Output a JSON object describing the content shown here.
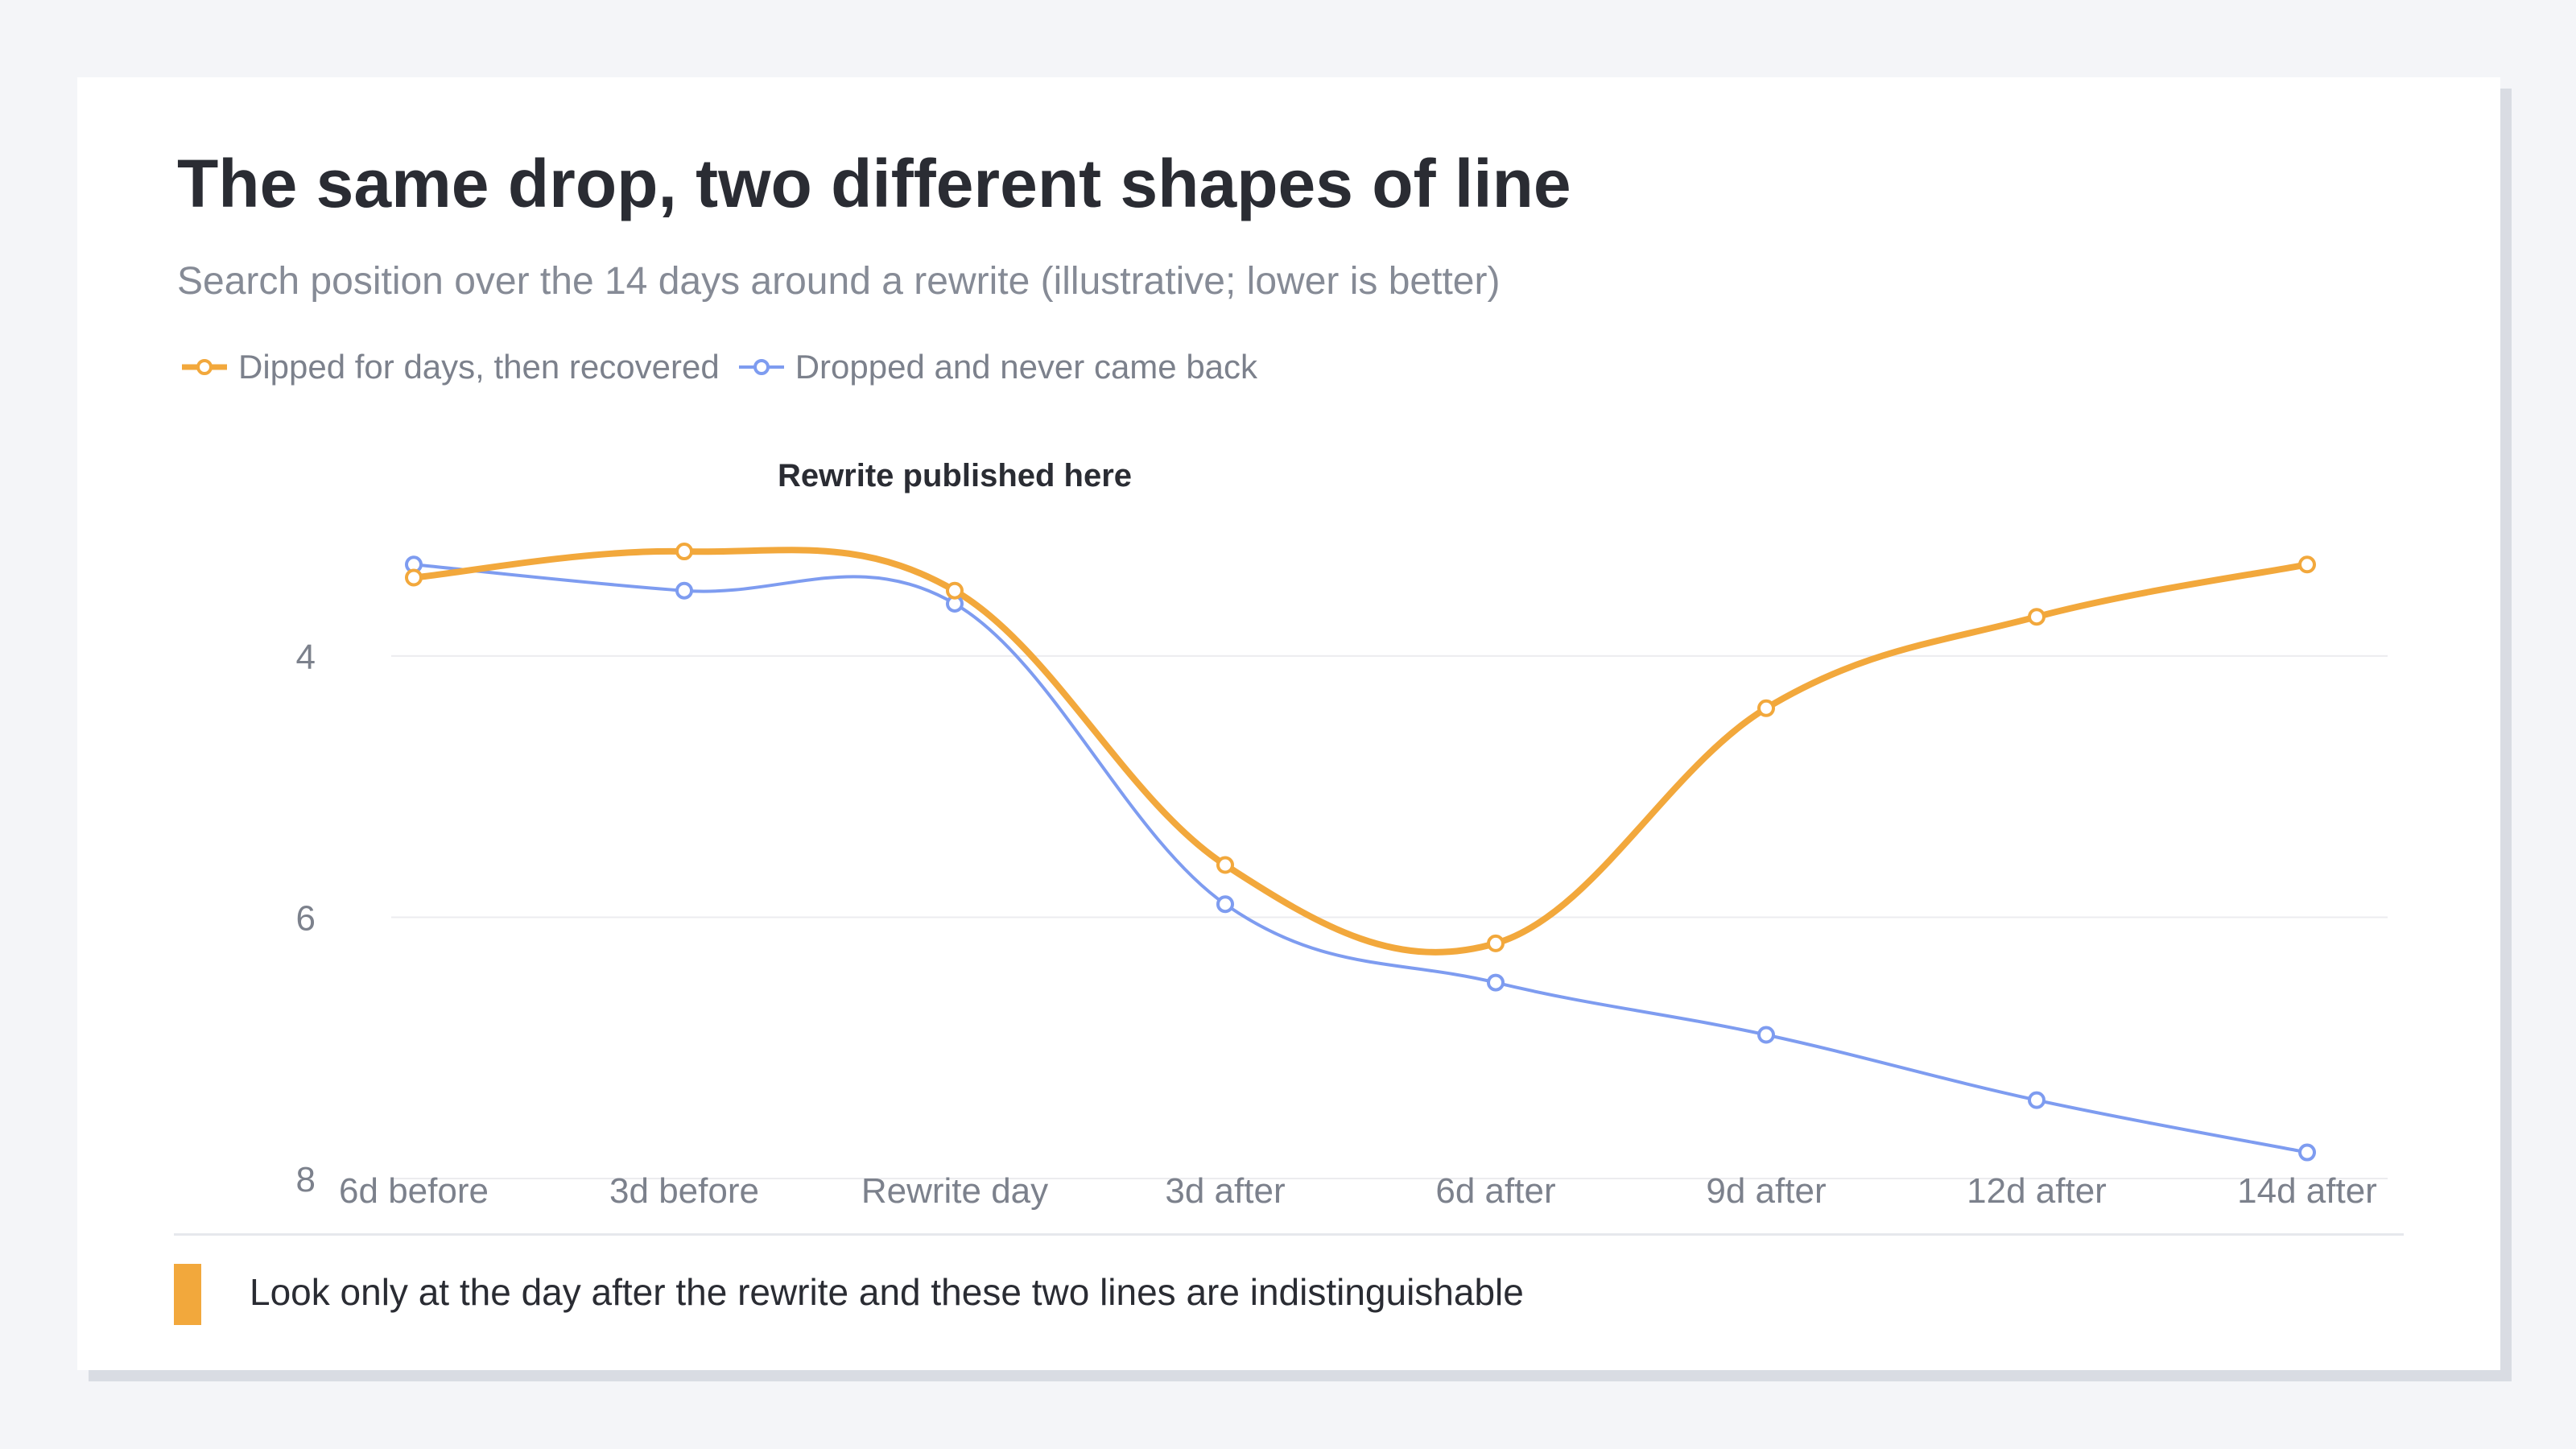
{
  "title": "The same drop, two different shapes of line",
  "subtitle": "Search position over the 14 days around a rewrite (illustrative; lower is better)",
  "footer_note": "Look only at the day after the rewrite and these two lines are indistinguishable",
  "colors": {
    "recovered": "#f2a83c",
    "never_back": "#7e9cf0",
    "grid": "#ececef",
    "axis_text": "#7c818c",
    "annotation": "#2a2c33"
  },
  "chart_data": {
    "type": "line",
    "title": "",
    "xlabel": "",
    "ylabel": "",
    "categories": [
      "6d before",
      "3d before",
      "Rewrite day",
      "3d after",
      "6d after",
      "9d after",
      "12d after",
      "14d after"
    ],
    "y_ticks": [
      4,
      6,
      8
    ],
    "ylim": [
      2.3,
      8.0
    ],
    "y_inverted": true,
    "grid": true,
    "legend_position": "top-left",
    "series": [
      {
        "name": "Dipped for days, then recovered",
        "color": "#f2a83c",
        "values": [
          3.4,
          3.2,
          3.5,
          5.6,
          6.2,
          4.4,
          3.7,
          3.3
        ]
      },
      {
        "name": "Dropped and never came back",
        "color": "#7e9cf0",
        "values": [
          3.3,
          3.5,
          3.6,
          5.9,
          6.5,
          6.9,
          7.4,
          7.8
        ]
      }
    ],
    "annotations": [
      {
        "text": "Rewrite published here",
        "x": "Rewrite day"
      }
    ]
  }
}
